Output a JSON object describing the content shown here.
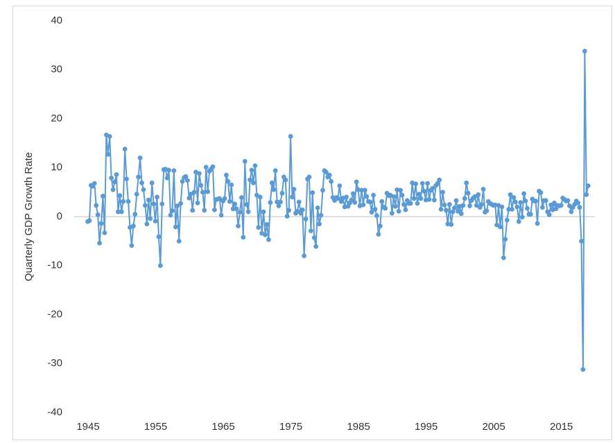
{
  "chart_data": {
    "type": "line",
    "y_label": "Quarterly GDP Growth Rate",
    "x": [
      1947,
      1947.25,
      1947.5,
      1947.75,
      1948,
      1948.25,
      1948.5,
      1948.75,
      1949,
      1949.25,
      1949.5,
      1949.75,
      1950,
      1950.25,
      1950.5,
      1950.75,
      1951,
      1951.25,
      1951.5,
      1951.75,
      1952,
      1952.25,
      1952.5,
      1952.75,
      1953,
      1953.25,
      1953.5,
      1953.75,
      1954,
      1954.25,
      1954.5,
      1954.75,
      1955,
      1955.25,
      1955.5,
      1955.75,
      1956,
      1956.25,
      1956.5,
      1956.75,
      1957,
      1957.25,
      1957.5,
      1957.75,
      1958,
      1958.25,
      1958.5,
      1958.75,
      1959,
      1959.25,
      1959.5,
      1959.75,
      1960,
      1960.25,
      1960.5,
      1960.75,
      1961,
      1961.25,
      1961.5,
      1961.75,
      1962,
      1962.25,
      1962.5,
      1962.75,
      1963,
      1963.25,
      1963.5,
      1963.75,
      1964,
      1964.25,
      1964.5,
      1964.75,
      1965,
      1965.25,
      1965.5,
      1965.75,
      1966,
      1966.25,
      1966.5,
      1966.75,
      1967,
      1967.25,
      1967.5,
      1967.75,
      1968,
      1968.25,
      1968.5,
      1968.75,
      1969,
      1969.25,
      1969.5,
      1969.75,
      1970,
      1970.25,
      1970.5,
      1970.75,
      1971,
      1971.25,
      1971.5,
      1971.75,
      1972,
      1972.25,
      1972.5,
      1972.75,
      1973,
      1973.25,
      1973.5,
      1973.75,
      1974,
      1974.25,
      1974.5,
      1974.75,
      1975,
      1975.25,
      1975.5,
      1975.75,
      1976,
      1976.25,
      1976.5,
      1976.75,
      1977,
      1977.25,
      1977.5,
      1977.75,
      1978,
      1978.25,
      1978.5,
      1978.75,
      1979,
      1979.25,
      1979.5,
      1979.75,
      1980,
      1980.25,
      1980.5,
      1980.75,
      1981,
      1981.25,
      1981.5,
      1981.75,
      1982,
      1982.25,
      1982.5,
      1982.75,
      1983,
      1983.25,
      1983.5,
      1983.75,
      1984,
      1984.25,
      1984.5,
      1984.75,
      1985,
      1985.25,
      1985.5,
      1985.75,
      1986,
      1986.25,
      1986.5,
      1986.75,
      1987,
      1987.25,
      1987.5,
      1987.75,
      1988,
      1988.25,
      1988.5,
      1988.75,
      1989,
      1989.25,
      1989.5,
      1989.75,
      1990,
      1990.25,
      1990.5,
      1990.75,
      1991,
      1991.25,
      1991.5,
      1991.75,
      1992,
      1992.25,
      1992.5,
      1992.75,
      1993,
      1993.25,
      1993.5,
      1993.75,
      1994,
      1994.25,
      1994.5,
      1994.75,
      1995,
      1995.25,
      1995.5,
      1995.75,
      1996,
      1996.25,
      1996.5,
      1996.75,
      1997,
      1997.25,
      1997.5,
      1997.75,
      1998,
      1998.25,
      1998.5,
      1998.75,
      1999,
      1999.25,
      1999.5,
      1999.75,
      2000,
      2000.25,
      2000.5,
      2000.75,
      2001,
      2001.25,
      2001.5,
      2001.75,
      2002,
      2002.25,
      2002.5,
      2002.75,
      2003,
      2003.25,
      2003.5,
      2003.75,
      2004,
      2004.25,
      2004.5,
      2004.75,
      2005,
      2005.25,
      2005.5,
      2005.75,
      2006,
      2006.25,
      2006.5,
      2006.75,
      2007,
      2007.25,
      2007.5,
      2007.75,
      2008,
      2008.25,
      2008.5,
      2008.75,
      2009,
      2009.25,
      2009.5,
      2009.75,
      2010,
      2010.25,
      2010.5,
      2010.75,
      2011,
      2011.25,
      2011.5,
      2011.75,
      2012,
      2012.25,
      2012.5,
      2012.75,
      2013,
      2013.25,
      2013.5,
      2013.75,
      2014,
      2014.25,
      2014.5,
      2014.75,
      2015,
      2015.25,
      2015.5,
      2015.75,
      2016,
      2016.25,
      2016.5,
      2016.75,
      2017,
      2017.25,
      2017.5,
      2017.75,
      2018,
      2018.25,
      2018.5,
      2018.75,
      2019,
      2019.25,
      2019.5,
      2019.75,
      2020,
      2020.25,
      2020.5,
      2020.75,
      2021
    ],
    "series": [
      {
        "color": "#5b9bd5",
        "values": [
          -1.0,
          -0.8,
          6.4,
          6.2,
          6.8,
          2.3,
          0.4,
          -5.4,
          -1.4,
          4.2,
          -3.3,
          16.7,
          12.7,
          16.4,
          7.9,
          5.5,
          7.1,
          8.6,
          1.0,
          4.3,
          1.0,
          3.1,
          13.8,
          7.7,
          3.1,
          -2.2,
          -5.9,
          -1.9,
          0.5,
          4.6,
          8.1,
          12.0,
          6.9,
          5.5,
          2.3,
          -1.5,
          3.4,
          -0.4,
          6.9,
          2.6,
          -0.9,
          4.0,
          -4.1,
          -10.0,
          2.6,
          9.6,
          9.7,
          7.9,
          9.5,
          0.3,
          1.2,
          9.4,
          -2.1,
          2.2,
          -5.0,
          2.7,
          7.2,
          8.0,
          8.2,
          7.4,
          3.8,
          4.6,
          1.3,
          5.0,
          9.1,
          2.8,
          8.8,
          6.4,
          5.0,
          1.3,
          10.1,
          5.1,
          9.3,
          9.7,
          10.2,
          1.4,
          3.5,
          3.6,
          3.7,
          0.3,
          3.2,
          3.7,
          8.5,
          7.2,
          3.1,
          6.5,
          1.6,
          2.6,
          1.6,
          -1.9,
          0.9,
          3.9,
          -4.2,
          11.3,
          2.5,
          1.0,
          7.5,
          9.5,
          6.9,
          10.4,
          4.4,
          -2.2,
          4.0,
          -3.4,
          1.0,
          -3.7,
          -1.6,
          -4.7,
          2.9,
          6.9,
          5.5,
          9.4,
          3.0,
          2.2,
          3.0,
          4.8,
          8.1,
          7.5,
          0.1,
          1.3,
          16.4,
          4.0,
          5.6,
          0.7,
          1.1,
          3.0,
          0.7,
          1.4,
          -8.0,
          -0.5,
          7.7,
          8.1,
          -2.9,
          4.9,
          -4.3,
          -6.1,
          1.8,
          -1.5,
          0.3,
          5.4,
          9.4,
          9.1,
          8.1,
          8.5,
          7.2,
          3.9,
          3.3,
          3.9,
          3.7,
          6.3,
          3.1,
          3.8,
          2.0,
          4.0,
          2.1,
          2.8,
          3.4,
          4.7,
          2.9,
          7.1,
          5.5,
          2.2,
          5.4,
          2.4,
          5.4,
          4.1,
          3.1,
          3.0,
          0.9,
          4.4,
          1.5,
          0.2,
          -3.6,
          -1.9,
          3.1,
          1.9,
          1.7,
          4.8,
          4.3,
          4.4,
          0.7,
          4.1,
          2.1,
          5.5,
          1.1,
          5.4,
          4.4,
          2.5,
          1.4,
          3.3,
          2.7,
          2.7,
          6.9,
          3.7,
          6.7,
          2.7,
          4.6,
          3.7,
          6.8,
          5.2,
          3.4,
          6.8,
          3.5,
          5.4,
          5.8,
          3.4,
          6.4,
          6.8,
          7.5,
          1.5,
          5.0,
          2.4,
          1.3,
          -1.5,
          2.5,
          -1.6,
          1.0,
          1.8,
          3.3,
          1.1,
          2.1,
          0.6,
          2.3,
          3.7,
          6.9,
          4.8,
          2.2,
          3.3,
          3.8,
          4.1,
          2.3,
          4.5,
          1.9,
          2.5,
          5.6,
          0.9,
          1.2,
          3.1,
          2.7,
          2.5,
          2.3,
          2.4,
          -1.7,
          2.3,
          -2.1,
          2.0,
          -8.4,
          -4.6,
          -0.7,
          1.5,
          4.5,
          1.5,
          3.9,
          3.0,
          2.0,
          -1.0,
          2.9,
          -0.1,
          4.7,
          3.2,
          1.7,
          0.5,
          0.5,
          3.6,
          3.2,
          3.2,
          -1.4,
          5.2,
          4.9,
          1.9,
          3.3,
          3.3,
          1.0,
          0.4,
          2.4,
          1.4,
          2.8,
          1.6,
          2.3,
          2.2,
          2.3,
          3.8,
          3.5,
          3.2,
          3.3,
          2.2,
          1.0,
          1.9,
          2.5,
          3.2,
          2.8,
          1.9,
          -5.0,
          -31.2,
          33.8,
          4.5,
          6.3
        ]
      }
    ],
    "xlim": [
      1945,
      2022
    ],
    "xticks": [
      1945,
      1955,
      1965,
      1975,
      1985,
      1995,
      2005,
      2015
    ],
    "ylim": [
      -40,
      40
    ],
    "yticks": [
      -40,
      -30,
      -20,
      -10,
      0,
      10,
      20,
      30,
      40
    ],
    "grid": false,
    "markers": true
  }
}
